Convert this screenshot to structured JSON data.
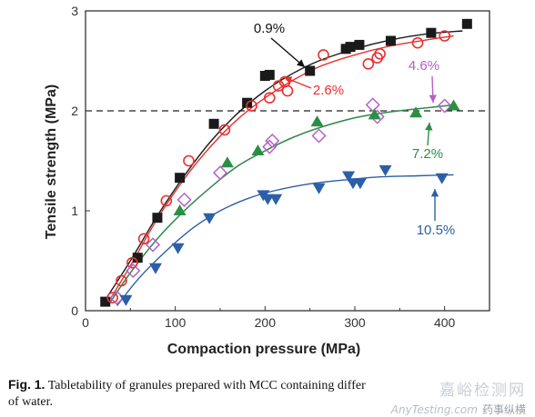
{
  "chart_data": {
    "type": "scatter",
    "title": "",
    "xlabel": "Compaction pressure (MPa)",
    "ylabel": "Tensile strength (MPa)",
    "xlim": [
      0,
      450
    ],
    "ylim": [
      0,
      3
    ],
    "xticks": [
      0,
      100,
      200,
      300,
      400
    ],
    "yticks": [
      0,
      1,
      2,
      3
    ],
    "reference_line": {
      "y": 2,
      "style": "dashed"
    },
    "series": [
      {
        "name": "0.9%",
        "marker": "square-filled",
        "color": "#1a1a1a",
        "label_color": "#111111",
        "x": [
          22,
          58,
          80,
          105,
          143,
          180,
          200,
          205,
          250,
          290,
          295,
          305,
          340,
          385,
          425
        ],
        "y": [
          0.09,
          0.53,
          0.93,
          1.33,
          1.87,
          2.08,
          2.35,
          2.36,
          2.4,
          2.62,
          2.64,
          2.66,
          2.7,
          2.78,
          2.87
        ],
        "curve": [
          [
            20,
            0.08
          ],
          [
            50,
            0.5
          ],
          [
            80,
            0.95
          ],
          [
            110,
            1.35
          ],
          [
            140,
            1.7
          ],
          [
            170,
            1.98
          ],
          [
            200,
            2.2
          ],
          [
            230,
            2.37
          ],
          [
            260,
            2.5
          ],
          [
            300,
            2.62
          ],
          [
            340,
            2.71
          ],
          [
            380,
            2.77
          ],
          [
            420,
            2.8
          ]
        ]
      },
      {
        "name": "2.6%",
        "marker": "circle-open",
        "color": "#e8302f",
        "label_color": "#e8302f",
        "x": [
          30,
          40,
          52,
          65,
          90,
          115,
          155,
          185,
          205,
          215,
          222,
          225,
          265,
          315,
          325,
          328,
          370,
          400
        ],
        "y": [
          0.13,
          0.3,
          0.48,
          0.72,
          1.1,
          1.5,
          1.81,
          2.05,
          2.13,
          2.25,
          2.29,
          2.2,
          2.56,
          2.47,
          2.53,
          2.57,
          2.68,
          2.75
        ],
        "curve": [
          [
            25,
            0.08
          ],
          [
            50,
            0.45
          ],
          [
            80,
            0.92
          ],
          [
            110,
            1.32
          ],
          [
            140,
            1.65
          ],
          [
            170,
            1.92
          ],
          [
            200,
            2.13
          ],
          [
            230,
            2.3
          ],
          [
            260,
            2.44
          ],
          [
            300,
            2.56
          ],
          [
            340,
            2.65
          ],
          [
            380,
            2.71
          ],
          [
            410,
            2.75
          ]
        ]
      },
      {
        "name": "4.6%",
        "marker": "diamond-open",
        "color": "#b55fc9",
        "label_color": "#b55fc9",
        "x": [
          35,
          53,
          75,
          110,
          150,
          205,
          208,
          260,
          320,
          325,
          400
        ],
        "y": [
          0.13,
          0.4,
          0.66,
          1.11,
          1.38,
          1.64,
          1.7,
          1.75,
          2.06,
          1.94,
          2.05
        ],
        "curve": [
          [
            25,
            0.05
          ],
          [
            50,
            0.38
          ],
          [
            80,
            0.72
          ],
          [
            110,
            1.0
          ],
          [
            140,
            1.24
          ],
          [
            170,
            1.45
          ],
          [
            200,
            1.6
          ],
          [
            230,
            1.73
          ],
          [
            260,
            1.83
          ],
          [
            300,
            1.93
          ],
          [
            340,
            1.99
          ],
          [
            380,
            2.03
          ],
          [
            410,
            2.06
          ]
        ]
      },
      {
        "name": "7.2%",
        "marker": "triangle-up-filled",
        "color": "#2a8f45",
        "label_color": "#2a8f45",
        "x": [
          105,
          158,
          192,
          258,
          322,
          368,
          410
        ],
        "y": [
          1.0,
          1.48,
          1.6,
          1.89,
          1.96,
          1.98,
          2.05
        ],
        "curve": [
          [
            25,
            0.05
          ],
          [
            50,
            0.38
          ],
          [
            80,
            0.72
          ],
          [
            110,
            1.0
          ],
          [
            140,
            1.24
          ],
          [
            170,
            1.45
          ],
          [
            200,
            1.6
          ],
          [
            230,
            1.73
          ],
          [
            260,
            1.83
          ],
          [
            300,
            1.93
          ],
          [
            340,
            1.99
          ],
          [
            380,
            2.03
          ],
          [
            410,
            2.06
          ]
        ]
      },
      {
        "name": "10.5%",
        "marker": "triangle-down-filled",
        "color": "#2c5fa8",
        "label_color": "#2c5fa8",
        "x": [
          45,
          78,
          103,
          138,
          198,
          203,
          212,
          260,
          293,
          298,
          306,
          334,
          397
        ],
        "y": [
          0.11,
          0.43,
          0.63,
          0.93,
          1.16,
          1.12,
          1.12,
          1.23,
          1.35,
          1.28,
          1.28,
          1.41,
          1.33
        ],
        "curve": [
          [
            35,
            0.05
          ],
          [
            60,
            0.33
          ],
          [
            90,
            0.6
          ],
          [
            120,
            0.83
          ],
          [
            150,
            1.0
          ],
          [
            180,
            1.12
          ],
          [
            210,
            1.2
          ],
          [
            250,
            1.27
          ],
          [
            290,
            1.31
          ],
          [
            330,
            1.34
          ],
          [
            370,
            1.35
          ],
          [
            410,
            1.36
          ]
        ]
      }
    ]
  },
  "caption": {
    "fig_label": "Fig. 1.",
    "text_line1": " Tabletability of granules prepared with MCC containing differ",
    "text_line2": "of water."
  },
  "watermark": {
    "cn": "嘉峪检测网",
    "en": "AnyTesting.com",
    "pub": "药事纵横"
  }
}
